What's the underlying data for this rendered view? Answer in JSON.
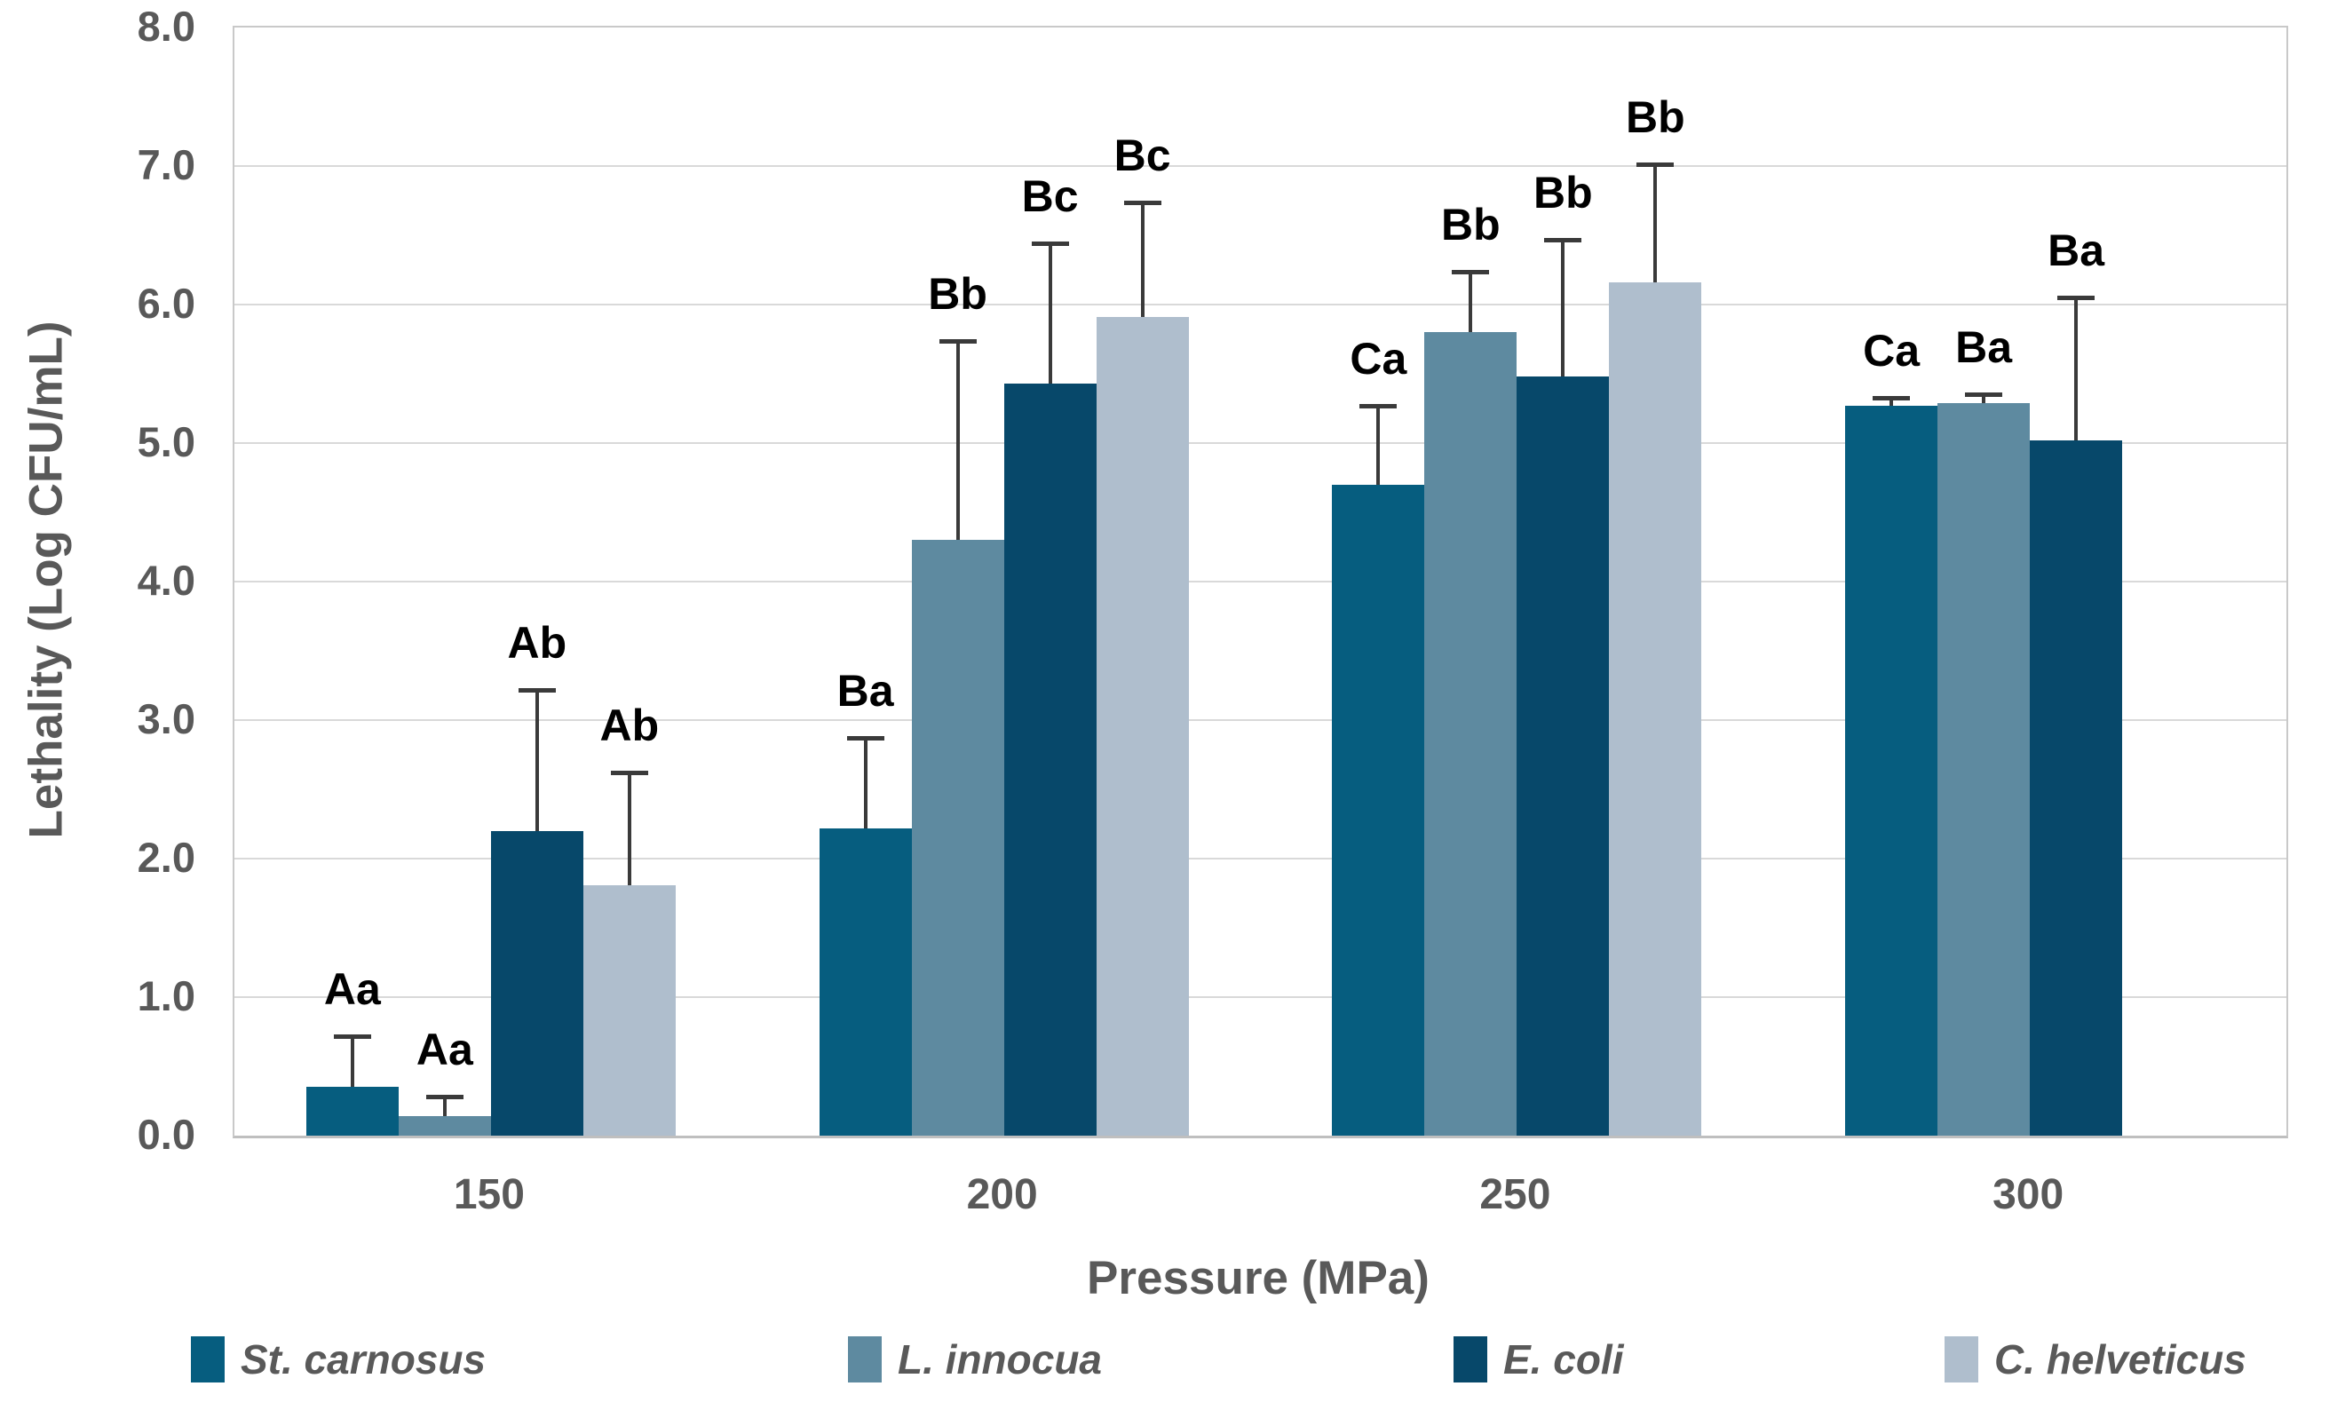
{
  "chart_data": {
    "type": "bar",
    "title": "",
    "xlabel": "Pressure (MPa)",
    "ylabel": "Lethality (Log CFU/mL)",
    "ylim": [
      0,
      8
    ],
    "ytick_step": 1.0,
    "ytick_labels": [
      "0.0",
      "1.0",
      "2.0",
      "3.0",
      "4.0",
      "5.0",
      "6.0",
      "7.0",
      "8.0"
    ],
    "grid": true,
    "legend_position": "bottom",
    "categories": [
      "150",
      "200",
      "250",
      "300"
    ],
    "series": [
      {
        "name": "St. carnosus",
        "color": "#065D7F",
        "values": [
          0.35,
          2.22,
          4.7,
          5.27
        ],
        "err_top": [
          0.72,
          2.87,
          5.27,
          5.33
        ],
        "sig_labels": [
          "Aa",
          "Ba",
          "Ca",
          "Ca"
        ]
      },
      {
        "name": "L. innocua",
        "color": "#5E8AA0",
        "values": [
          0.14,
          4.3,
          5.8,
          5.29
        ],
        "err_top": [
          0.28,
          5.74,
          6.24,
          5.35
        ],
        "sig_labels": [
          "Aa",
          "Bb",
          "Bb",
          "Ba"
        ]
      },
      {
        "name": "E. coli",
        "color": "#07486A",
        "values": [
          2.2,
          5.43,
          5.48,
          5.02
        ],
        "err_top": [
          3.22,
          6.44,
          6.47,
          6.05
        ],
        "sig_labels": [
          "Ab",
          "Bc",
          "Bb",
          "Ba"
        ]
      },
      {
        "name": "C. helveticus",
        "color": "#AFBECD",
        "values": [
          1.81,
          5.91,
          6.16,
          null
        ],
        "err_top": [
          2.62,
          6.74,
          7.01,
          null
        ],
        "sig_labels": [
          "Ab",
          "Bc",
          "Bb",
          null
        ]
      }
    ]
  },
  "style_colors": {
    "gridline": "#d9d9d9",
    "axis_line": "#bfbfbf",
    "tick_text": "#595959",
    "sig_text": "#000000",
    "error_bar": "#3a3a3a",
    "background": "#ffffff"
  }
}
